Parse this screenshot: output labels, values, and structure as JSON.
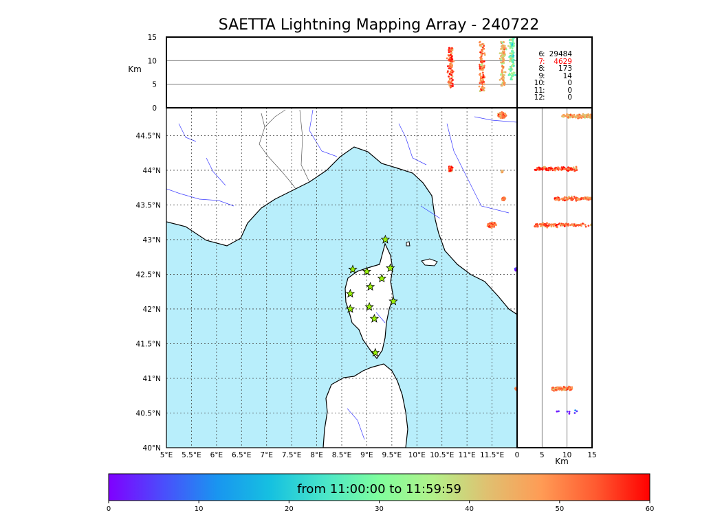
{
  "title": "SAETTA Lightning Mapping Array - 240722",
  "colorbar": {
    "label": "from 11:00:00 to 11:59:59",
    "ticks": [
      "0",
      "10",
      "20",
      "30",
      "40",
      "50",
      "60"
    ],
    "range": [
      0,
      60
    ],
    "colormap": [
      "#8000ff",
      "#4b4dfc",
      "#1995f0",
      "#16c1e0",
      "#4ae6c9",
      "#80fe9d",
      "#b3f18a",
      "#e0c070",
      "#ff9b55",
      "#ff5a30",
      "#ff0000"
    ]
  },
  "altitude_counts": {
    "rows": [
      {
        "level": "6",
        "sep": ":",
        "count": "29484",
        "highlight": false
      },
      {
        "level": "7",
        "sep": ":",
        "count": "4629",
        "highlight": true
      },
      {
        "level": "8",
        "sep": ":",
        "count": "173",
        "highlight": false
      },
      {
        "level": "9",
        "sep": ":",
        "count": "14",
        "highlight": false
      },
      {
        "level": "10",
        "sep": ":",
        "count": "0",
        "highlight": false
      },
      {
        "level": "11",
        "sep": ":",
        "count": "0",
        "highlight": false
      },
      {
        "level": "12",
        "sep": ":",
        "count": "0",
        "highlight": false
      }
    ]
  },
  "chart_data": [
    {
      "type": "map-scatter",
      "name": "plan view",
      "xlim": [
        5.0,
        12.0
      ],
      "ylim": [
        40.0,
        44.9
      ],
      "x_ticks": [
        "5°E",
        "5.5°E",
        "6°E",
        "6.5°E",
        "7°E",
        "7.5°E",
        "8°E",
        "8.5°E",
        "9°E",
        "9.5°E",
        "10°E",
        "10.5°E",
        "11°E",
        "11.5°E"
      ],
      "x_tick_values": [
        5.0,
        5.5,
        6.0,
        6.5,
        7.0,
        7.5,
        8.0,
        8.5,
        9.0,
        9.5,
        10.0,
        10.5,
        11.0,
        11.5
      ],
      "y_ticks": [
        "40°N",
        "40.5°N",
        "41°N",
        "41.5°N",
        "42°N",
        "42.5°N",
        "43°N",
        "43.5°N",
        "44°N",
        "44.5°N"
      ],
      "y_tick_values": [
        40.0,
        40.5,
        41.0,
        41.5,
        42.0,
        42.5,
        43.0,
        43.5,
        44.0,
        44.5
      ],
      "grid": true,
      "clusters": [
        {
          "lon": 10.67,
          "lat": 44.02,
          "lon_spread": 0.05,
          "lat_spread": 0.04,
          "time": 55
        },
        {
          "lon": 11.7,
          "lat": 44.79,
          "lon_spread": 0.1,
          "lat_spread": 0.06,
          "time": 50
        },
        {
          "lon": 11.5,
          "lat": 43.21,
          "lon_spread": 0.12,
          "lat_spread": 0.05,
          "time": 52
        },
        {
          "lon": 11.73,
          "lat": 43.59,
          "lon_spread": 0.04,
          "lat_spread": 0.03,
          "time": 50
        },
        {
          "lon": 11.7,
          "lat": 43.98,
          "lon_spread": 0.02,
          "lat_spread": 0.02,
          "time": 45
        },
        {
          "lon": 11.98,
          "lat": 42.57,
          "lon_spread": 0.03,
          "lat_spread": 0.03,
          "time": 2
        },
        {
          "lon": 11.98,
          "lat": 40.85,
          "lon_spread": 0.02,
          "lat_spread": 0.02,
          "time": 50
        }
      ],
      "stations": [
        {
          "lon": 9.37,
          "lat": 43.0
        },
        {
          "lon": 8.72,
          "lat": 42.57
        },
        {
          "lon": 9.0,
          "lat": 42.54
        },
        {
          "lon": 9.47,
          "lat": 42.59
        },
        {
          "lon": 9.3,
          "lat": 42.44
        },
        {
          "lon": 9.07,
          "lat": 42.32
        },
        {
          "lon": 8.67,
          "lat": 42.22
        },
        {
          "lon": 9.53,
          "lat": 42.11
        },
        {
          "lon": 9.05,
          "lat": 42.03
        },
        {
          "lon": 8.67,
          "lat": 42.0
        },
        {
          "lon": 9.15,
          "lat": 41.86
        },
        {
          "lon": 9.17,
          "lat": 41.37
        }
      ]
    },
    {
      "type": "scatter",
      "name": "longitude-altitude",
      "ylabel": "Km",
      "ylim": [
        0,
        15
      ],
      "y_ticks": [
        "0",
        "5",
        "10",
        "15"
      ],
      "y_tick_values": [
        0,
        5,
        10,
        15
      ],
      "hlines": [
        5,
        10
      ],
      "clusters": [
        {
          "lon": 10.67,
          "alt_min": 4.0,
          "alt_max": 13.0,
          "time": 55
        },
        {
          "lon": 11.3,
          "alt_min": 3.5,
          "alt_max": 14.0,
          "time": 50
        },
        {
          "lon": 11.72,
          "alt_min": 4.5,
          "alt_max": 14.0,
          "time": 45
        },
        {
          "lon": 11.9,
          "alt_min": 6.0,
          "alt_max": 15.0,
          "time": 30
        }
      ]
    },
    {
      "type": "scatter",
      "name": "altitude-latitude",
      "xlabel": "Km",
      "xlim": [
        0,
        15
      ],
      "x_ticks": [
        "0",
        "5",
        "10",
        "15"
      ],
      "x_tick_values": [
        0,
        5,
        10,
        15
      ],
      "vlines": [
        5,
        10
      ],
      "clusters": [
        {
          "lat": 44.78,
          "alt_min": 9.0,
          "alt_max": 15.0,
          "time": 45
        },
        {
          "lat": 44.02,
          "alt_min": 3.5,
          "alt_max": 12.0,
          "time": 55
        },
        {
          "lat": 43.59,
          "alt_min": 7.5,
          "alt_max": 15.0,
          "time": 52
        },
        {
          "lat": 43.21,
          "alt_min": 3.5,
          "alt_max": 15.0,
          "time": 53
        },
        {
          "lat": 40.85,
          "alt_min": 7.0,
          "alt_max": 11.0,
          "time": 50
        },
        {
          "lat": 40.52,
          "alt_min": 7.0,
          "alt_max": 12.0,
          "time": 2
        }
      ]
    }
  ]
}
